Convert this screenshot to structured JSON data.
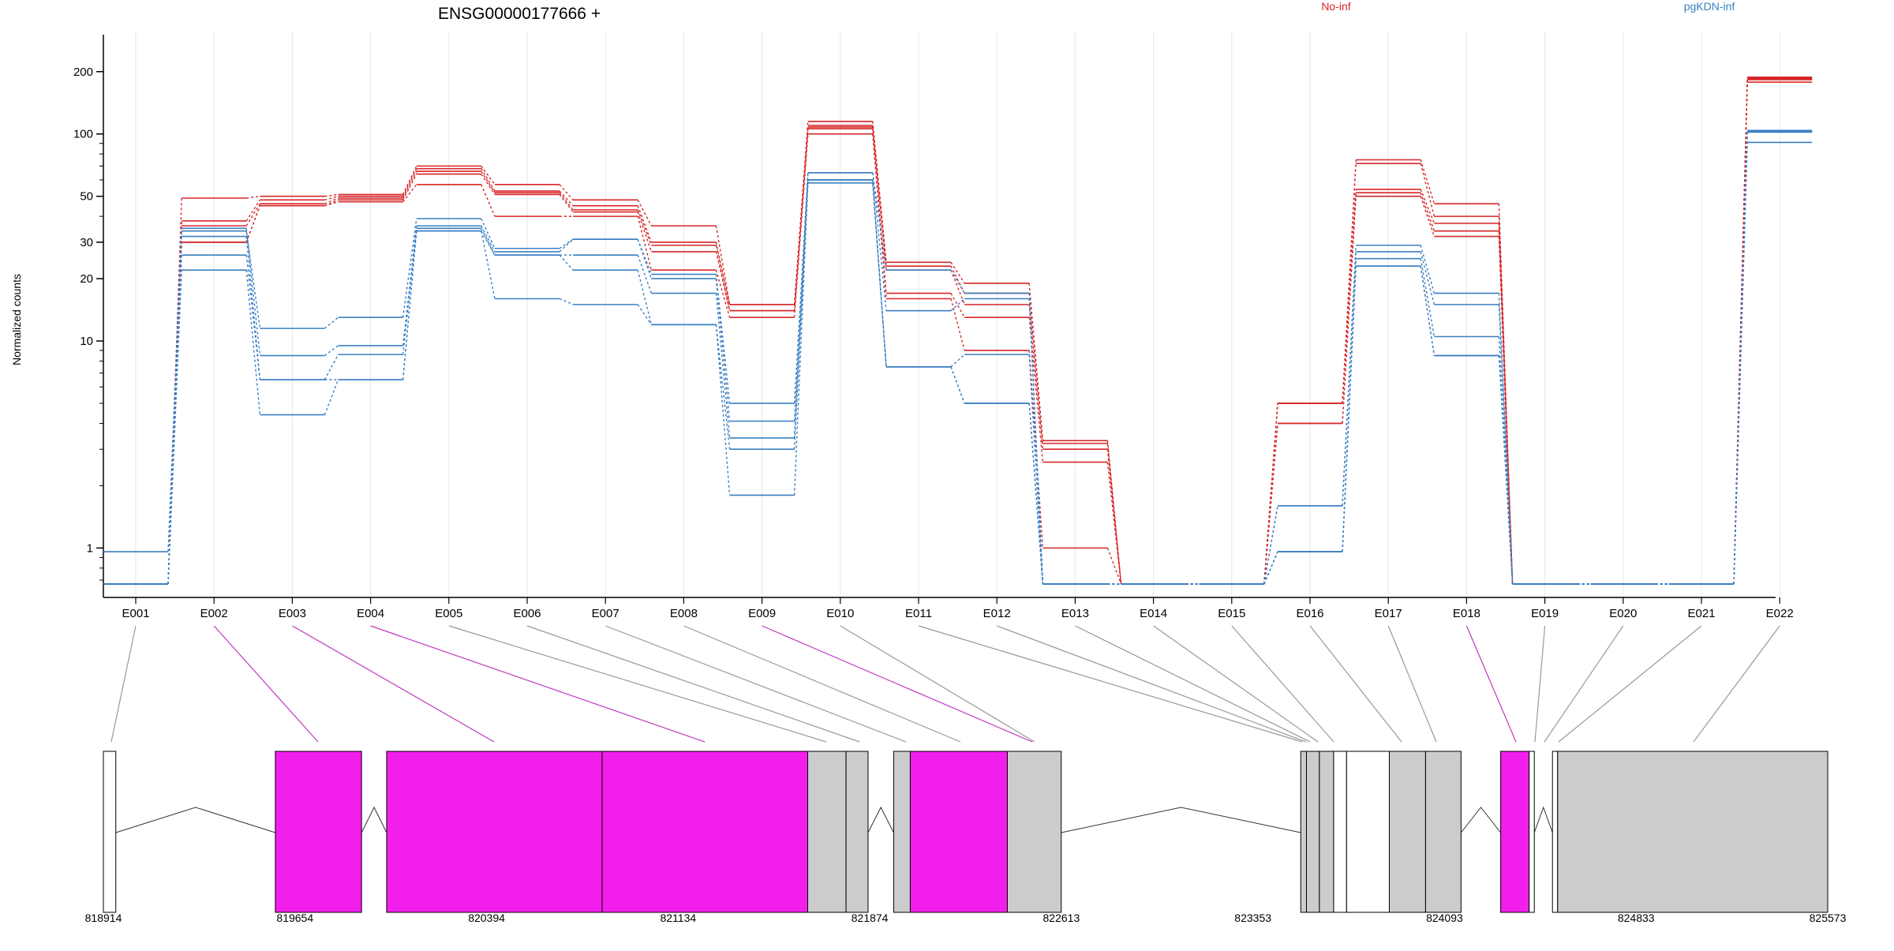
{
  "chart_data": {
    "type": "line",
    "title": "ENSG00000177666 +",
    "ylabel": "Normalized counts",
    "xlabel": "",
    "y_scale": "log",
    "y_ticks": [
      1,
      10,
      20,
      30,
      50,
      100,
      200
    ],
    "y_tick_labels": [
      "1",
      "10",
      "20",
      "30",
      "50",
      "100",
      "200"
    ],
    "ylim": [
      0.67,
      240
    ],
    "grid": "vertical lines at exon centers",
    "categories": [
      "E001",
      "E002",
      "E003",
      "E004",
      "E005",
      "E006",
      "E007",
      "E008",
      "E009",
      "E010",
      "E011",
      "E012",
      "E013",
      "E014",
      "E015",
      "E016",
      "E017",
      "E018",
      "E019",
      "E020",
      "E021",
      "E022"
    ],
    "legend_position": "top",
    "colors": {
      "No-inf": "#d62728",
      "pgKDN-inf": "#3a7fc2",
      "highlight": "#f21fec",
      "exon_gray": "#cccccc"
    },
    "series": [
      {
        "name": "No-inf",
        "group": "No-inf",
        "values": [
          0.67,
          49,
          50,
          51,
          70,
          57,
          48,
          36,
          15,
          115,
          24,
          19,
          3.3,
          0.67,
          0.67,
          5,
          75,
          46,
          0.67,
          0.67,
          0.67,
          188
        ]
      },
      {
        "name": "No-inf",
        "group": "No-inf",
        "values": [
          0.67,
          38,
          48,
          50,
          68,
          53,
          45,
          30,
          15,
          110,
          23,
          17,
          3.2,
          0.67,
          0.67,
          5,
          72,
          40,
          0.67,
          0.67,
          0.67,
          186
        ]
      },
      {
        "name": "No-inf",
        "group": "No-inf",
        "values": [
          0.67,
          36,
          46,
          49,
          66,
          52,
          43,
          29,
          14,
          108,
          22,
          15,
          3.0,
          0.67,
          0.67,
          5,
          54,
          37,
          0.67,
          0.67,
          0.67,
          185
        ]
      },
      {
        "name": "No-inf",
        "group": "No-inf",
        "values": [
          0.67,
          30,
          45,
          48,
          64,
          51,
          42,
          27,
          14,
          106,
          17,
          13,
          2.6,
          0.67,
          0.67,
          4,
          52,
          34,
          0.67,
          0.67,
          0.67,
          183
        ]
      },
      {
        "name": "No-inf",
        "group": "No-inf",
        "values": [
          0.67,
          30,
          45,
          47,
          57,
          40,
          40,
          22,
          13,
          100,
          16,
          9,
          1.0,
          0.67,
          0.67,
          4,
          50,
          32,
          0.67,
          0.67,
          0.67,
          178
        ]
      },
      {
        "name": "pgKDN-inf",
        "group": "pgKDN-inf",
        "values": [
          0.96,
          34,
          11.5,
          13,
          39,
          28,
          31,
          21,
          5.0,
          65,
          22,
          17,
          0.67,
          0.67,
          0.67,
          1.6,
          29,
          17,
          0.67,
          0.67,
          0.67,
          104
        ]
      },
      {
        "name": "pgKDN-inf",
        "group": "pgKDN-inf",
        "values": [
          0.67,
          35,
          8.5,
          9.5,
          36,
          27,
          31,
          20,
          4.1,
          65,
          14,
          16,
          0.67,
          0.67,
          0.67,
          1.6,
          27,
          15,
          0.67,
          0.67,
          0.67,
          104
        ]
      },
      {
        "name": "pgKDN-inf",
        "group": "pgKDN-inf",
        "values": [
          0.67,
          32,
          6.5,
          8.6,
          35,
          26,
          26,
          17,
          3.4,
          60,
          7.5,
          8.6,
          0.67,
          0.67,
          0.67,
          0.96,
          25,
          10.5,
          0.67,
          0.67,
          0.67,
          103
        ]
      },
      {
        "name": "pgKDN-inf",
        "group": "pgKDN-inf",
        "values": [
          0.67,
          26,
          6.5,
          6.5,
          34,
          26,
          22,
          12,
          3.0,
          60,
          7.5,
          5,
          0.67,
          0.67,
          0.67,
          0.96,
          23,
          8.5,
          0.67,
          0.67,
          0.67,
          102
        ]
      },
      {
        "name": "pgKDN-inf",
        "group": "pgKDN-inf",
        "values": [
          0.67,
          22,
          4.4,
          6.5,
          34,
          16,
          15,
          12,
          1.8,
          58,
          7.5,
          5,
          0.67,
          0.67,
          0.67,
          0.96,
          23,
          8.5,
          0.67,
          0.67,
          0.67,
          91
        ]
      }
    ],
    "gene_model": {
      "coord_labels": [
        "818914",
        "819654",
        "820394",
        "821134",
        "821874",
        "822613",
        "823353",
        "824093",
        "824833",
        "825573"
      ],
      "coord_range": [
        818914,
        825573
      ],
      "exons": [
        {
          "label": "E001",
          "start": 818914,
          "end": 818962,
          "highlight": false,
          "fill": "white"
        },
        {
          "label": "E002",
          "start": 819578,
          "end": 819911,
          "highlight": true,
          "fill": "magenta"
        },
        {
          "label": "E003",
          "start": 820008,
          "end": 820840,
          "highlight": true,
          "fill": "magenta"
        },
        {
          "label": "E004",
          "start": 820840,
          "end": 821634,
          "highlight": true,
          "fill": "magenta"
        },
        {
          "label": "E005",
          "start": 821634,
          "end": 821782,
          "highlight": false,
          "fill": "gray"
        },
        {
          "label": "E006",
          "start": 821782,
          "end": 821867,
          "highlight": false,
          "fill": "gray"
        },
        {
          "label": "E007",
          "start": 821966,
          "end": 822030,
          "highlight": false,
          "fill": "gray"
        },
        {
          "label": "E008",
          "start": 822030,
          "end": 822405,
          "highlight": true,
          "fill": "magenta"
        },
        {
          "label": "E009",
          "start": 822405,
          "end": 822613,
          "highlight": false,
          "fill": "gray"
        },
        {
          "label": "E010",
          "start": 823538,
          "end": 823560,
          "highlight": false,
          "fill": "gray"
        },
        {
          "label": "E011",
          "start": 823560,
          "end": 823610,
          "highlight": false,
          "fill": "gray"
        },
        {
          "label": "E012",
          "start": 823610,
          "end": 823665,
          "highlight": false,
          "fill": "gray"
        },
        {
          "label": "E013",
          "start": 823665,
          "end": 823715,
          "highlight": false,
          "fill": "white"
        },
        {
          "label": "E014",
          "start": 823715,
          "end": 823880,
          "highlight": false,
          "fill": "white"
        },
        {
          "label": "E015",
          "start": 823880,
          "end": 824020,
          "highlight": false,
          "fill": "gray"
        },
        {
          "label": "E016",
          "start": 824020,
          "end": 824157,
          "highlight": false,
          "fill": "gray"
        },
        {
          "label": "E017",
          "start": 824310,
          "end": 824420,
          "highlight": true,
          "fill": "magenta"
        },
        {
          "label": "E018",
          "start": 824420,
          "end": 824440,
          "highlight": false,
          "fill": "white"
        },
        {
          "label": "E019",
          "start": 824510,
          "end": 824530,
          "highlight": false,
          "fill": "white"
        },
        {
          "label": "E020",
          "start": 824530,
          "end": 825573,
          "highlight": false,
          "fill": "gray"
        }
      ],
      "mapping_highlight": [
        false,
        true,
        true,
        true,
        false,
        false,
        false,
        false,
        true,
        false,
        false,
        false,
        false,
        false,
        false,
        false,
        false,
        true,
        false,
        false,
        false,
        false
      ]
    }
  }
}
